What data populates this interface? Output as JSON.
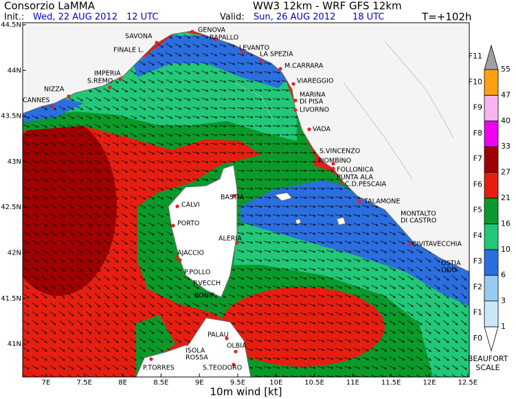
{
  "header": {
    "org": "Consorzio LaMMA",
    "model": "WW3 12km - WRF GFS 12km",
    "init_label": "Init.:",
    "init_date": "Wed, 22 AUG 2012",
    "init_time": "12 UTC",
    "valid_label": "Valid:",
    "valid_date": "Sun, 26 AUG 2012",
    "valid_time": "18 UTC",
    "lead": "T=+102h"
  },
  "map": {
    "lon_ticks": [
      "7E",
      "7.5E",
      "8E",
      "8.5E",
      "9E",
      "9.5E",
      "10E",
      "10.5E",
      "11E",
      "11.5E",
      "12E",
      "12.5E"
    ],
    "lat_ticks": [
      "44.5N",
      "44N",
      "43.5N",
      "43N",
      "42.5N",
      "42N",
      "41.5N",
      "41N"
    ],
    "x_label": "10m wind [kt]",
    "places": [
      {
        "lines": [
          "SAVONA"
        ]
      },
      {
        "lines": [
          "GENOVA"
        ]
      },
      {
        "lines": [
          "RAPALLO"
        ]
      },
      {
        "lines": [
          "FINALE L."
        ]
      },
      {
        "lines": [
          "LEVANTO"
        ]
      },
      {
        "lines": [
          "LA SPEZIA"
        ]
      },
      {
        "lines": [
          "M.CARRARA"
        ]
      },
      {
        "lines": [
          "IMPERIA"
        ]
      },
      {
        "lines": [
          "S.REMO"
        ]
      },
      {
        "lines": [
          "VIAREGGIO"
        ]
      },
      {
        "lines": [
          "NIZZA"
        ]
      },
      {
        "lines": [
          "MARINA",
          "DI PISA"
        ]
      },
      {
        "lines": [
          "CANNES"
        ]
      },
      {
        "lines": [
          "LIVORNO"
        ]
      },
      {
        "lines": [
          "VADA"
        ]
      },
      {
        "lines": [
          "S.VINCENZO"
        ]
      },
      {
        "lines": [
          "PIOMBINO"
        ]
      },
      {
        "lines": [
          "FOLLONICA"
        ]
      },
      {
        "lines": [
          "PUNTA ALA"
        ]
      },
      {
        "lines": [
          "C.D.PESCAIA"
        ]
      },
      {
        "lines": [
          "BASTIA"
        ]
      },
      {
        "lines": [
          "TALAMONE"
        ]
      },
      {
        "lines": [
          "CALVI"
        ]
      },
      {
        "lines": [
          "MONTALTO",
          "DI CASTRO"
        ]
      },
      {
        "lines": [
          "PORTO"
        ]
      },
      {
        "lines": [
          "ALERIA"
        ]
      },
      {
        "lines": [
          "CIVITAVECCHIA"
        ]
      },
      {
        "lines": [
          "AJACCIO"
        ]
      },
      {
        "lines": [
          "OSTIA",
          "LIDO"
        ]
      },
      {
        "lines": [
          "P.POLLO"
        ]
      },
      {
        "lines": [
          "P.VECCH"
        ]
      },
      {
        "lines": [
          "BONIF"
        ]
      },
      {
        "lines": [
          "PALAU"
        ]
      },
      {
        "lines": [
          "OLBIA"
        ]
      },
      {
        "lines": [
          "ISOLA",
          "ROSSA"
        ]
      },
      {
        "lines": [
          "P.TORRES"
        ]
      },
      {
        "lines": [
          "S.TEODORO"
        ]
      }
    ]
  },
  "colorbar": {
    "beaufort": [
      "F0",
      "F1",
      "F2",
      "F3",
      "F4",
      "F5",
      "F6",
      "F7",
      "F8",
      "F9",
      "F10",
      "F11"
    ],
    "knots": [
      1,
      3,
      6,
      10,
      16,
      21,
      27,
      33,
      40,
      47,
      55
    ],
    "colors": [
      "#ffffff",
      "#c8e8fa",
      "#96ccf0",
      "#2a6ee0",
      "#20c878",
      "#0a9a2a",
      "#e61e10",
      "#a00000",
      "#f000f0",
      "#f8b4f0",
      "#ffa010",
      "#a0a0a0"
    ],
    "title": [
      "BEAUFORT",
      "SCALE"
    ]
  }
}
